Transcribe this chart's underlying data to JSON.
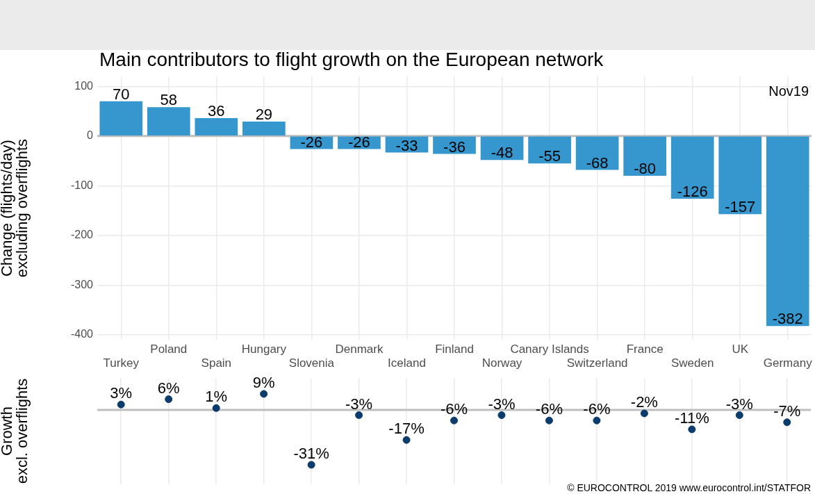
{
  "chart_data": [
    {
      "type": "bar",
      "title": "Main contributors to flight growth on the European network",
      "ylabel": "Change (flights/day)\nexcluding overflights",
      "categories": [
        "Turkey",
        "Poland",
        "Spain",
        "Hungary",
        "Slovenia",
        "Denmark",
        "Iceland",
        "Finland",
        "Norway",
        "Canary Islands",
        "Switzerland",
        "France",
        "Sweden",
        "UK",
        "Germany"
      ],
      "values": [
        70,
        58,
        36,
        29,
        -26,
        -26,
        -33,
        -36,
        -48,
        -55,
        -68,
        -80,
        -126,
        -157,
        -382
      ],
      "color": "#3597cd",
      "ylim": [
        -410,
        120
      ],
      "yticks": [
        -400,
        -300,
        -200,
        -100,
        0,
        100
      ],
      "grid": true,
      "data_labels": true,
      "ref_lines": [
        {
          "axis": "y",
          "value": 0,
          "color": "#bfbfbf"
        }
      ],
      "annotations": [
        "Nov19"
      ]
    },
    {
      "type": "scatter",
      "ylabel": "Growth\nexcl. overflights",
      "categories": [
        null,
        null,
        null,
        null,
        null,
        null,
        null,
        null,
        null,
        null,
        null,
        null,
        null,
        null,
        null
      ],
      "values": [
        3,
        6,
        1,
        9,
        -31,
        -3,
        -17,
        -6,
        -3,
        -6,
        -6,
        -2,
        -11,
        -3,
        -7
      ],
      "value_labels": [
        "3%",
        "6%",
        "1%",
        "9%",
        "-31%",
        "-3%",
        "-17%",
        "-6%",
        "-3%",
        "-6%",
        "-6%",
        "-2%",
        "-11%",
        "-3%",
        "-7%"
      ],
      "color": "#0b3c6b",
      "marker": "circle",
      "ylim": [
        -42,
        18
      ],
      "grid": "x",
      "tick_labels": false,
      "ref_lines": [
        {
          "axis": "y",
          "value": 0,
          "color": "#bfbfbf"
        }
      ],
      "annotations": [
        "© EUROCONTROL 2019 www.eurocontrol.int/STATFOR"
      ]
    }
  ]
}
